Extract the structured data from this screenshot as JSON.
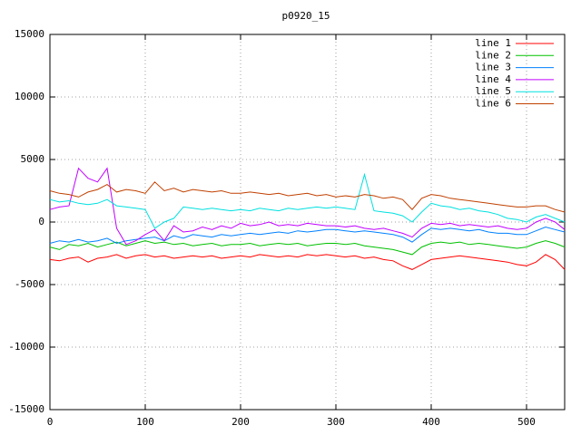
{
  "chart_data": {
    "type": "line",
    "title": "p0920_15",
    "x": [
      0,
      10,
      20,
      30,
      40,
      50,
      60,
      70,
      80,
      90,
      100,
      110,
      120,
      130,
      140,
      150,
      160,
      170,
      180,
      190,
      200,
      210,
      220,
      230,
      240,
      250,
      260,
      270,
      280,
      290,
      300,
      310,
      320,
      330,
      340,
      350,
      360,
      370,
      380,
      390,
      400,
      410,
      420,
      430,
      440,
      450,
      460,
      470,
      480,
      490,
      500,
      510,
      520,
      530,
      540
    ],
    "xlim": [
      0,
      540
    ],
    "xticks": [
      0,
      100,
      200,
      300,
      400,
      500
    ],
    "ylim": [
      -15000,
      15000
    ],
    "yticks": [
      -15000,
      -10000,
      -5000,
      0,
      5000,
      10000,
      15000
    ],
    "grid": true,
    "legend": "top-right",
    "series": [
      {
        "name": "line 1",
        "color": "#ff0000",
        "values": [
          -3000,
          -3100,
          -2900,
          -2800,
          -3200,
          -2900,
          -2800,
          -2600,
          -2900,
          -2700,
          -2600,
          -2800,
          -2700,
          -2900,
          -2800,
          -2700,
          -2800,
          -2700,
          -2900,
          -2800,
          -2700,
          -2800,
          -2600,
          -2700,
          -2800,
          -2700,
          -2800,
          -2600,
          -2700,
          -2600,
          -2700,
          -2800,
          -2700,
          -2900,
          -2800,
          -3000,
          -3100,
          -3500,
          -3800,
          -3400,
          -3000,
          -2900,
          -2800,
          -2700,
          -2800,
          -2900,
          -3000,
          -3100,
          -3200,
          -3400,
          -3500,
          -3200,
          -2600,
          -3000,
          -3800
        ]
      },
      {
        "name": "line 2",
        "color": "#00c000",
        "values": [
          -2000,
          -2200,
          -1800,
          -1900,
          -1700,
          -2000,
          -1800,
          -1600,
          -1900,
          -1700,
          -1500,
          -1700,
          -1600,
          -1800,
          -1700,
          -1900,
          -1800,
          -1700,
          -1900,
          -1800,
          -1800,
          -1700,
          -1900,
          -1800,
          -1700,
          -1800,
          -1700,
          -1900,
          -1800,
          -1700,
          -1700,
          -1800,
          -1700,
          -1900,
          -2000,
          -2100,
          -2200,
          -2400,
          -2600,
          -2000,
          -1700,
          -1600,
          -1700,
          -1600,
          -1800,
          -1700,
          -1800,
          -1900,
          -2000,
          -2100,
          -2000,
          -1700,
          -1500,
          -1700,
          -2000
        ]
      },
      {
        "name": "line 3",
        "color": "#0080ff",
        "values": [
          -1700,
          -1500,
          -1600,
          -1400,
          -1600,
          -1500,
          -1300,
          -1700,
          -1500,
          -1400,
          -1300,
          -1200,
          -1500,
          -1100,
          -1300,
          -1000,
          -1100,
          -1200,
          -1000,
          -1100,
          -1000,
          -900,
          -1000,
          -900,
          -800,
          -900,
          -700,
          -800,
          -700,
          -600,
          -600,
          -700,
          -800,
          -700,
          -800,
          -900,
          -1000,
          -1200,
          -1600,
          -1000,
          -500,
          -600,
          -500,
          -600,
          -700,
          -600,
          -800,
          -900,
          -900,
          -1000,
          -1000,
          -700,
          -400,
          -600,
          -800
        ]
      },
      {
        "name": "line 4",
        "color": "#c000ff",
        "values": [
          1000,
          1200,
          1300,
          4300,
          3500,
          3200,
          4300,
          -500,
          -1800,
          -1500,
          -1000,
          -600,
          -1500,
          -300,
          -800,
          -700,
          -400,
          -600,
          -300,
          -500,
          -100,
          -300,
          -200,
          0,
          -300,
          -200,
          -300,
          -100,
          -200,
          -300,
          -300,
          -400,
          -300,
          -500,
          -600,
          -500,
          -700,
          -900,
          -1200,
          -500,
          -100,
          -200,
          -100,
          -300,
          -200,
          -300,
          -400,
          -300,
          -500,
          -600,
          -500,
          0,
          300,
          0,
          -600
        ]
      },
      {
        "name": "line 5",
        "color": "#00e0e0",
        "values": [
          1800,
          1600,
          1700,
          1500,
          1400,
          1500,
          1800,
          1300,
          1200,
          1100,
          1000,
          -500,
          0,
          300,
          1200,
          1100,
          1000,
          1100,
          1000,
          900,
          1000,
          900,
          1100,
          1000,
          900,
          1100,
          1000,
          1100,
          1200,
          1100,
          1200,
          1100,
          1000,
          3800,
          900,
          800,
          700,
          500,
          0,
          800,
          1500,
          1300,
          1200,
          1000,
          1100,
          900,
          800,
          600,
          300,
          200,
          0,
          400,
          600,
          300,
          0
        ]
      },
      {
        "name": "line 6",
        "color": "#c04000",
        "values": [
          2500,
          2300,
          2200,
          2000,
          2400,
          2600,
          3000,
          2400,
          2600,
          2500,
          2300,
          3200,
          2500,
          2700,
          2400,
          2600,
          2500,
          2400,
          2500,
          2300,
          2300,
          2400,
          2300,
          2200,
          2300,
          2100,
          2200,
          2300,
          2100,
          2200,
          2000,
          2100,
          2000,
          2200,
          2100,
          1900,
          2000,
          1800,
          1000,
          1900,
          2200,
          2100,
          1900,
          1800,
          1700,
          1600,
          1500,
          1400,
          1300,
          1200,
          1200,
          1300,
          1300,
          1000,
          800
        ]
      }
    ]
  }
}
